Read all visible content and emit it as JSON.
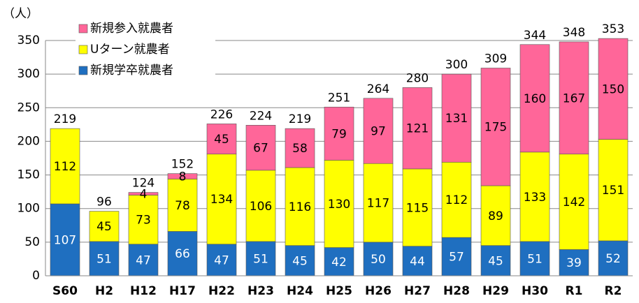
{
  "chart_data": {
    "type": "stacked_bar",
    "y_unit_label": "（人）",
    "categories": [
      "S60",
      "H2",
      "H12",
      "H17",
      "H22",
      "H23",
      "H24",
      "H25",
      "H26",
      "H27",
      "H28",
      "H29",
      "H30",
      "R1",
      "R2"
    ],
    "series": [
      {
        "name": "新規学卒就農者",
        "color": "#1f6fc0",
        "label_color": "#ffffff",
        "values": [
          107,
          51,
          47,
          66,
          47,
          51,
          45,
          42,
          50,
          44,
          57,
          45,
          51,
          39,
          52
        ]
      },
      {
        "name": "Uターン就農者",
        "color": "#ffff00",
        "label_color": "#000000",
        "values": [
          112,
          45,
          73,
          78,
          134,
          106,
          116,
          130,
          117,
          115,
          112,
          89,
          133,
          142,
          151
        ]
      },
      {
        "name": "新規参入就農者",
        "color": "#ff6699",
        "label_color": "#000000",
        "values": [
          null,
          null,
          4,
          8,
          45,
          67,
          58,
          79,
          97,
          121,
          131,
          175,
          160,
          167,
          150
        ]
      }
    ],
    "totals": [
      219,
      96,
      124,
      152,
      226,
      224,
      219,
      251,
      264,
      280,
      300,
      309,
      344,
      348,
      353
    ],
    "ylim": [
      0,
      350
    ],
    "yticks": [
      0,
      50,
      100,
      150,
      200,
      250,
      300,
      350
    ],
    "grid": true,
    "legend": "upper left"
  }
}
